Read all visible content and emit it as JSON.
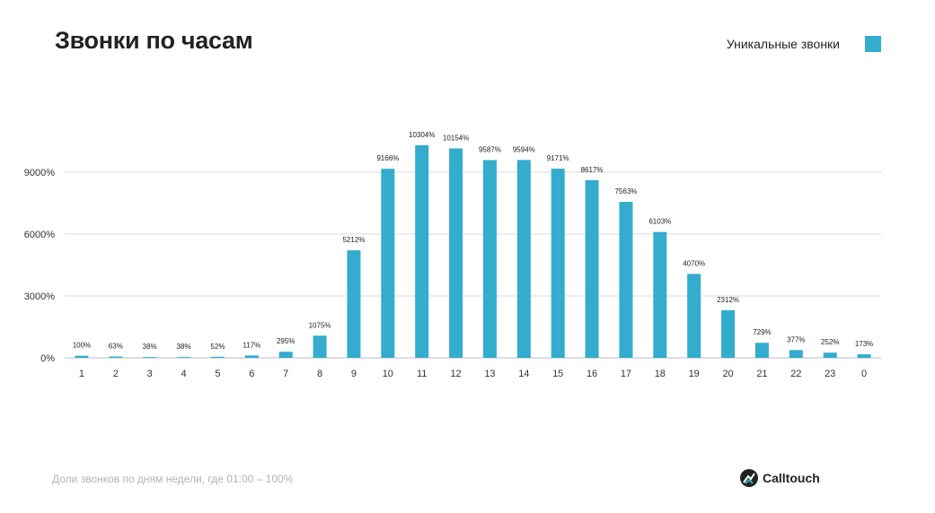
{
  "title": "Звонки по часам",
  "legend": {
    "label": "Уникальные звонки",
    "color": "#33accd"
  },
  "footer": {
    "note": "Доли звонков по дням недели, где 01:00 – 100%"
  },
  "brand": {
    "name": "Calltouch",
    "icon": "calltouch-logo-icon"
  },
  "chart_data": {
    "type": "bar",
    "title": "Звонки по часам",
    "xlabel": "",
    "ylabel": "",
    "categories": [
      "1",
      "2",
      "3",
      "4",
      "5",
      "6",
      "7",
      "8",
      "9",
      "10",
      "11",
      "12",
      "13",
      "14",
      "15",
      "16",
      "17",
      "18",
      "19",
      "20",
      "21",
      "22",
      "23",
      "0"
    ],
    "series": [
      {
        "name": "Уникальные звонки",
        "color": "#33accd",
        "values": [
          100,
          63,
          38,
          38,
          52,
          117,
          295,
          1075,
          5212,
          9166,
          10304,
          10154,
          9587,
          9594,
          9171,
          8617,
          7563,
          6103,
          4070,
          2312,
          729,
          377,
          252,
          173
        ],
        "labels": [
          "100%",
          "63%",
          "38%",
          "38%",
          "52%",
          "117%",
          "295%",
          "1075%",
          "5212%",
          "9166%",
          "10304%",
          "10154%",
          "9587%",
          "9594%",
          "9171%",
          "8617%",
          "7563%",
          "6103%",
          "4070%",
          "2312%",
          "729%",
          "377%",
          "252%",
          "173%"
        ]
      }
    ],
    "yticks": [
      0,
      3000,
      6000,
      9000
    ],
    "ytick_labels": [
      "0%",
      "3000%",
      "6000%",
      "9000%"
    ],
    "ylim": [
      0,
      10500
    ],
    "grid": true,
    "legend_position": "top-right"
  }
}
